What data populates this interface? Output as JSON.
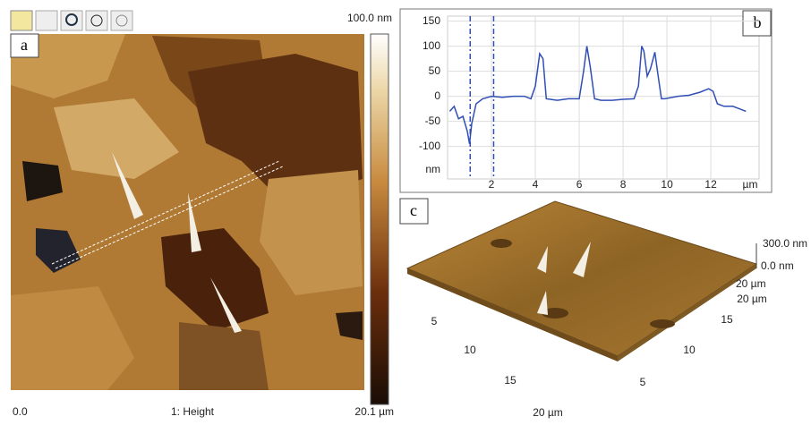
{
  "panel_a": {
    "label": "a",
    "scale_max": "100.0 nm",
    "x_start": "0.0",
    "channel": "1: Height",
    "x_end": "20.1 µm"
  },
  "panel_c": {
    "label": "c",
    "z_top": "300.0 nm",
    "z_bottom": "0.0 nm",
    "z_side": "20 µm",
    "left_ticks": [
      "5",
      "10",
      "15",
      "20 µm"
    ],
    "right_ticks": [
      "5",
      "10",
      "15",
      "20 µm"
    ]
  },
  "chart_data": {
    "type": "line",
    "label": "b",
    "y_unit": "nm",
    "x_unit": "µm",
    "x": [
      0.1,
      0.3,
      0.5,
      0.7,
      0.9,
      1.0,
      1.1,
      1.3,
      1.6,
      2.0,
      2.5,
      3.0,
      3.5,
      3.8,
      4.0,
      4.2,
      4.35,
      4.5,
      5.0,
      5.5,
      6.0,
      6.2,
      6.35,
      6.5,
      6.7,
      7.0,
      7.5,
      8.0,
      8.5,
      8.7,
      8.85,
      8.95,
      9.1,
      9.25,
      9.45,
      9.6,
      9.75,
      9.9,
      10.5,
      11.0,
      11.5,
      11.9,
      12.1,
      12.3,
      12.6,
      13.0,
      13.3,
      13.6
    ],
    "series": [
      {
        "color": "#2f4fb5",
        "values": [
          -30,
          -20,
          -45,
          -40,
          -70,
          -95,
          -55,
          -15,
          -5,
          0,
          -2,
          0,
          0,
          -5,
          20,
          85,
          75,
          -5,
          -8,
          -5,
          -5,
          50,
          100,
          60,
          -5,
          -8,
          -8,
          -6,
          -5,
          20,
          100,
          90,
          40,
          55,
          88,
          40,
          -5,
          -5,
          0,
          2,
          8,
          15,
          10,
          -15,
          -20,
          -20,
          -25,
          -30
        ]
      }
    ],
    "cursors": [
      1.03,
      2.1
    ],
    "xlim": [
      0,
      14.2
    ],
    "ylim": [
      -165,
      160
    ],
    "xticks": [
      2,
      4,
      6,
      8,
      10,
      12
    ],
    "yticks": [
      150,
      100,
      50,
      0,
      -50,
      -100
    ],
    "grid": true
  }
}
